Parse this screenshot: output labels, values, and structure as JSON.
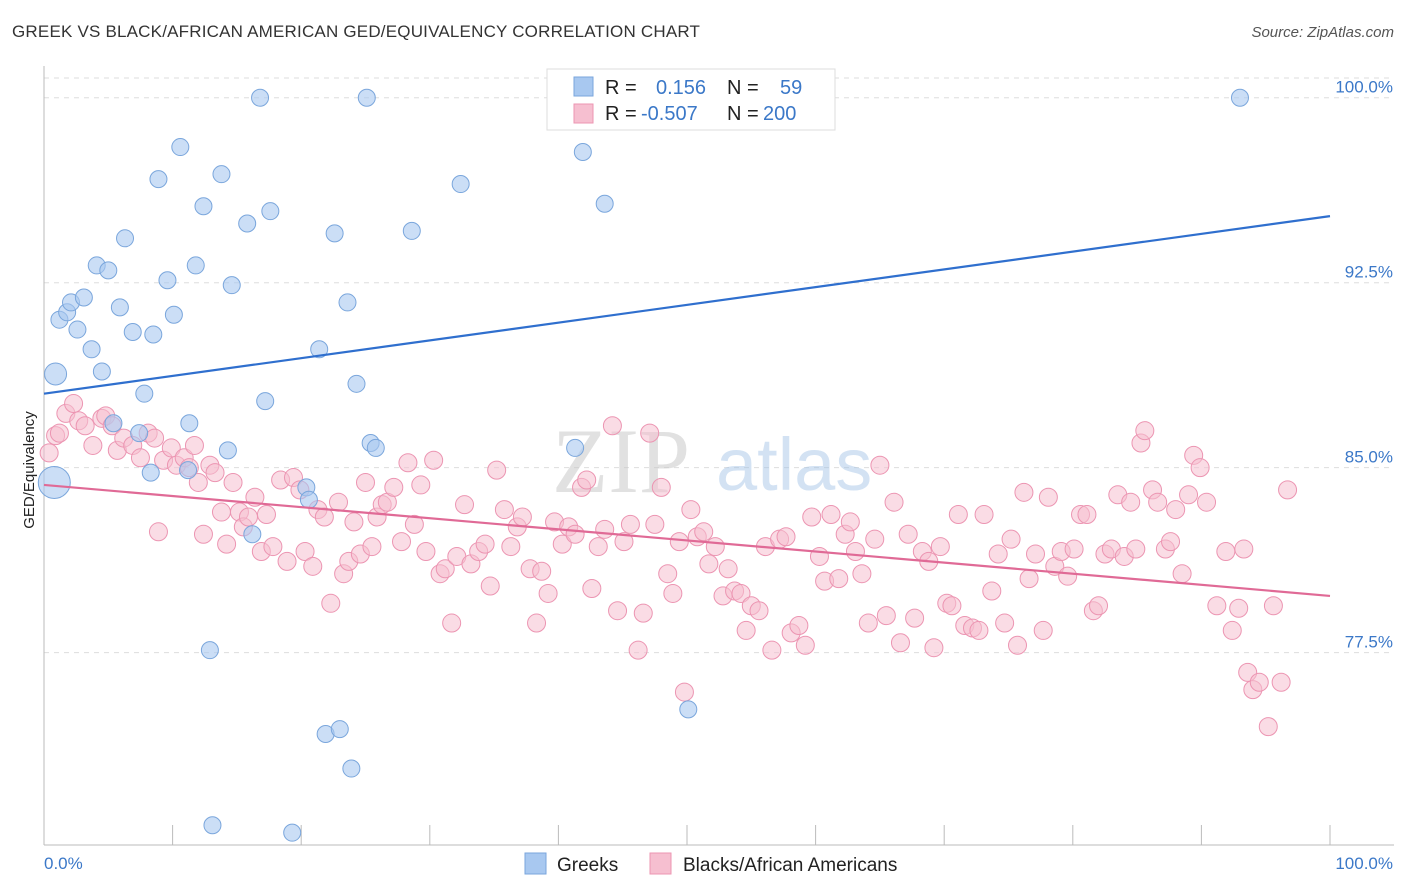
{
  "header": {
    "title": "GREEK VS BLACK/AFRICAN AMERICAN GED/EQUIVALENCY CORRELATION CHART",
    "source": "Source: ZipAtlas.com"
  },
  "watermark": {
    "part1": "ZIP",
    "part2": "atlas"
  },
  "legend": {
    "r_label": "R =",
    "n_label": "N =",
    "greeks": {
      "r": "0.156",
      "n": "59"
    },
    "blacks": {
      "r": "-0.507",
      "n": "200"
    }
  },
  "bottom_legend": {
    "greeks": "Greeks",
    "blacks": "Blacks/African Americans"
  },
  "colors": {
    "greeks_fill": "#a8c8f0",
    "greeks_stroke": "#7aa6dc",
    "greeks_line": "#2f6fce",
    "blacks_fill": "#f6bfd0",
    "blacks_stroke": "#ec95b2",
    "blacks_line": "#e06a96",
    "tick_text": "#3b78c8",
    "grid": "#dddddd"
  },
  "chart_data": {
    "type": "scatter",
    "title": "GREEK VS BLACK/AFRICAN AMERICAN GED/EQUIVALENCY CORRELATION CHART",
    "xlabel": "",
    "ylabel": "GED/Equivalency",
    "xlim": [
      0,
      100
    ],
    "ylim": [
      69.7,
      100.8
    ],
    "y_ticks": [
      77.5,
      85.0,
      92.5,
      100.0
    ],
    "y_tick_labels": [
      "77.5%",
      "85.0%",
      "92.5%",
      "100.0%"
    ],
    "x_tick_labels": [
      "0.0%",
      "100.0%"
    ],
    "grid": "horizontal dashed",
    "legend_position": "top-center",
    "series": [
      {
        "name": "Greeks",
        "r": 0.156,
        "n": 59,
        "trend": {
          "x": [
            0,
            100
          ],
          "y": [
            88.0,
            95.2
          ]
        },
        "points": [
          [
            0.8,
            84.4
          ],
          [
            0.9,
            88.8
          ],
          [
            1.2,
            91.0
          ],
          [
            1.8,
            91.3
          ],
          [
            2.1,
            91.7
          ],
          [
            2.6,
            90.6
          ],
          [
            3.1,
            91.9
          ],
          [
            3.7,
            89.8
          ],
          [
            4.1,
            93.2
          ],
          [
            4.5,
            88.9
          ],
          [
            5.0,
            93.0
          ],
          [
            5.4,
            86.8
          ],
          [
            5.9,
            91.5
          ],
          [
            6.3,
            94.3
          ],
          [
            6.9,
            90.5
          ],
          [
            7.4,
            86.4
          ],
          [
            7.8,
            88.0
          ],
          [
            8.3,
            84.8
          ],
          [
            8.5,
            90.4
          ],
          [
            8.9,
            96.7
          ],
          [
            9.6,
            92.6
          ],
          [
            10.1,
            91.2
          ],
          [
            10.6,
            98.0
          ],
          [
            11.2,
            84.9
          ],
          [
            11.3,
            86.8
          ],
          [
            11.8,
            93.2
          ],
          [
            12.4,
            95.6
          ],
          [
            12.9,
            77.6
          ],
          [
            13.1,
            70.5
          ],
          [
            13.8,
            96.9
          ],
          [
            14.3,
            85.7
          ],
          [
            14.6,
            92.4
          ],
          [
            15.8,
            94.9
          ],
          [
            16.2,
            82.3
          ],
          [
            16.8,
            100.0
          ],
          [
            17.2,
            87.7
          ],
          [
            17.6,
            95.4
          ],
          [
            19.3,
            70.2
          ],
          [
            20.4,
            84.2
          ],
          [
            20.6,
            83.7
          ],
          [
            21.4,
            89.8
          ],
          [
            21.9,
            74.2
          ],
          [
            22.6,
            94.5
          ],
          [
            23.0,
            74.4
          ],
          [
            23.6,
            91.7
          ],
          [
            23.9,
            72.8
          ],
          [
            24.3,
            88.4
          ],
          [
            25.1,
            100.0
          ],
          [
            25.4,
            86.0
          ],
          [
            25.8,
            85.8
          ],
          [
            28.6,
            94.6
          ],
          [
            32.4,
            96.5
          ],
          [
            41.3,
            85.8
          ],
          [
            41.9,
            97.8
          ],
          [
            43.6,
            95.7
          ],
          [
            50.1,
            75.2
          ],
          [
            52.0,
            100.0
          ],
          [
            56.2,
            100.0
          ],
          [
            93.0,
            100.0
          ]
        ]
      },
      {
        "name": "Blacks/African Americans",
        "r": -0.507,
        "n": 200,
        "trend": {
          "x": [
            0,
            100
          ],
          "y": [
            84.3,
            79.8
          ]
        },
        "points": [
          [
            0.4,
            85.6
          ],
          [
            0.9,
            86.3
          ],
          [
            1.2,
            86.4
          ],
          [
            1.7,
            87.2
          ],
          [
            2.3,
            87.6
          ],
          [
            2.7,
            86.9
          ],
          [
            3.2,
            86.7
          ],
          [
            3.8,
            85.9
          ],
          [
            4.5,
            87.0
          ],
          [
            4.8,
            87.1
          ],
          [
            5.3,
            86.7
          ],
          [
            5.7,
            85.7
          ],
          [
            6.2,
            86.2
          ],
          [
            6.9,
            85.9
          ],
          [
            7.5,
            85.4
          ],
          [
            8.1,
            86.4
          ],
          [
            8.6,
            86.2
          ],
          [
            8.9,
            82.4
          ],
          [
            9.3,
            85.3
          ],
          [
            9.9,
            85.8
          ],
          [
            10.3,
            85.1
          ],
          [
            10.9,
            85.4
          ],
          [
            11.3,
            85.0
          ],
          [
            11.7,
            85.9
          ],
          [
            12.0,
            84.4
          ],
          [
            12.4,
            82.3
          ],
          [
            12.9,
            85.1
          ],
          [
            13.3,
            84.8
          ],
          [
            13.8,
            83.2
          ],
          [
            14.2,
            81.9
          ],
          [
            14.7,
            84.4
          ],
          [
            15.2,
            83.2
          ],
          [
            15.5,
            82.6
          ],
          [
            15.9,
            83.0
          ],
          [
            16.4,
            83.8
          ],
          [
            16.9,
            81.6
          ],
          [
            17.3,
            83.1
          ],
          [
            17.8,
            81.8
          ],
          [
            18.4,
            84.5
          ],
          [
            18.9,
            81.2
          ],
          [
            19.4,
            84.6
          ],
          [
            19.9,
            84.1
          ],
          [
            20.3,
            81.6
          ],
          [
            20.9,
            81.0
          ],
          [
            21.3,
            83.3
          ],
          [
            21.8,
            83.0
          ],
          [
            22.3,
            79.5
          ],
          [
            22.9,
            83.6
          ],
          [
            23.3,
            80.7
          ],
          [
            23.7,
            81.2
          ],
          [
            24.1,
            82.8
          ],
          [
            24.6,
            81.5
          ],
          [
            25.0,
            84.4
          ],
          [
            25.5,
            81.8
          ],
          [
            25.9,
            83.0
          ],
          [
            26.3,
            83.5
          ],
          [
            26.7,
            83.6
          ],
          [
            27.2,
            84.2
          ],
          [
            27.8,
            82.0
          ],
          [
            28.3,
            85.2
          ],
          [
            28.8,
            82.7
          ],
          [
            29.3,
            84.3
          ],
          [
            29.7,
            81.6
          ],
          [
            30.3,
            85.3
          ],
          [
            30.8,
            80.7
          ],
          [
            31.2,
            80.9
          ],
          [
            31.7,
            78.7
          ],
          [
            32.1,
            81.4
          ],
          [
            32.7,
            83.5
          ],
          [
            33.2,
            81.1
          ],
          [
            33.8,
            81.6
          ],
          [
            34.3,
            81.9
          ],
          [
            34.7,
            80.2
          ],
          [
            35.2,
            84.9
          ],
          [
            35.8,
            83.3
          ],
          [
            36.3,
            81.8
          ],
          [
            36.8,
            82.6
          ],
          [
            37.2,
            83.0
          ],
          [
            37.8,
            80.9
          ],
          [
            38.3,
            78.7
          ],
          [
            38.7,
            80.8
          ],
          [
            39.2,
            79.9
          ],
          [
            39.7,
            82.8
          ],
          [
            40.3,
            81.9
          ],
          [
            40.8,
            82.6
          ],
          [
            41.3,
            82.3
          ],
          [
            41.8,
            84.2
          ],
          [
            42.2,
            84.5
          ],
          [
            42.6,
            80.1
          ],
          [
            43.1,
            81.8
          ],
          [
            43.6,
            82.5
          ],
          [
            44.2,
            86.7
          ],
          [
            44.6,
            79.2
          ],
          [
            45.1,
            82.0
          ],
          [
            45.6,
            82.7
          ],
          [
            46.2,
            77.6
          ],
          [
            46.6,
            79.1
          ],
          [
            47.1,
            86.4
          ],
          [
            47.5,
            82.7
          ],
          [
            48.0,
            84.2
          ],
          [
            48.5,
            80.7
          ],
          [
            48.9,
            79.9
          ],
          [
            49.4,
            82.0
          ],
          [
            49.8,
            75.9
          ],
          [
            50.3,
            83.3
          ],
          [
            50.8,
            82.2
          ],
          [
            51.3,
            82.4
          ],
          [
            51.7,
            81.1
          ],
          [
            52.2,
            81.8
          ],
          [
            52.8,
            79.8
          ],
          [
            53.2,
            80.9
          ],
          [
            53.7,
            80.0
          ],
          [
            54.2,
            79.9
          ],
          [
            54.6,
            78.4
          ],
          [
            55.0,
            79.4
          ],
          [
            55.6,
            79.2
          ],
          [
            56.1,
            81.8
          ],
          [
            56.6,
            77.6
          ],
          [
            57.2,
            82.1
          ],
          [
            57.7,
            82.2
          ],
          [
            58.1,
            78.3
          ],
          [
            58.7,
            78.6
          ],
          [
            59.2,
            77.8
          ],
          [
            59.7,
            83.0
          ],
          [
            60.3,
            81.4
          ],
          [
            60.7,
            80.4
          ],
          [
            61.2,
            83.1
          ],
          [
            61.8,
            80.5
          ],
          [
            62.3,
            82.3
          ],
          [
            62.7,
            82.8
          ],
          [
            63.1,
            81.6
          ],
          [
            63.6,
            80.7
          ],
          [
            64.1,
            78.7
          ],
          [
            64.6,
            82.1
          ],
          [
            65.0,
            85.1
          ],
          [
            65.5,
            79.0
          ],
          [
            66.1,
            83.6
          ],
          [
            66.6,
            77.9
          ],
          [
            67.2,
            82.3
          ],
          [
            67.7,
            78.9
          ],
          [
            68.3,
            81.6
          ],
          [
            68.8,
            81.2
          ],
          [
            69.2,
            77.7
          ],
          [
            69.7,
            81.8
          ],
          [
            70.2,
            79.5
          ],
          [
            70.6,
            79.4
          ],
          [
            71.1,
            83.1
          ],
          [
            71.6,
            78.6
          ],
          [
            72.2,
            78.5
          ],
          [
            72.7,
            78.4
          ],
          [
            73.1,
            83.1
          ],
          [
            73.7,
            80.0
          ],
          [
            74.2,
            81.5
          ],
          [
            74.7,
            78.7
          ],
          [
            75.2,
            82.1
          ],
          [
            75.7,
            77.8
          ],
          [
            76.2,
            84.0
          ],
          [
            76.6,
            80.5
          ],
          [
            77.1,
            81.5
          ],
          [
            77.7,
            78.4
          ],
          [
            78.1,
            83.8
          ],
          [
            78.6,
            81.0
          ],
          [
            79.1,
            81.6
          ],
          [
            79.6,
            80.6
          ],
          [
            80.1,
            81.7
          ],
          [
            80.6,
            83.1
          ],
          [
            81.1,
            83.1
          ],
          [
            81.6,
            79.2
          ],
          [
            82.0,
            79.4
          ],
          [
            82.5,
            81.5
          ],
          [
            83.0,
            81.7
          ],
          [
            83.5,
            83.9
          ],
          [
            84.0,
            81.4
          ],
          [
            84.5,
            83.6
          ],
          [
            84.9,
            81.7
          ],
          [
            85.3,
            86.0
          ],
          [
            85.6,
            86.5
          ],
          [
            86.2,
            84.1
          ],
          [
            86.6,
            83.6
          ],
          [
            87.2,
            81.7
          ],
          [
            87.6,
            82.0
          ],
          [
            88.0,
            83.3
          ],
          [
            88.5,
            80.7
          ],
          [
            89.0,
            83.9
          ],
          [
            89.4,
            85.5
          ],
          [
            89.9,
            85.0
          ],
          [
            90.4,
            83.6
          ],
          [
            91.2,
            79.4
          ],
          [
            91.9,
            81.6
          ],
          [
            92.4,
            78.4
          ],
          [
            92.9,
            79.3
          ],
          [
            93.3,
            81.7
          ],
          [
            93.6,
            76.7
          ],
          [
            94.0,
            76.0
          ],
          [
            94.5,
            76.3
          ],
          [
            95.2,
            74.5
          ],
          [
            95.6,
            79.4
          ],
          [
            96.2,
            76.3
          ],
          [
            96.7,
            84.1
          ]
        ]
      }
    ]
  }
}
